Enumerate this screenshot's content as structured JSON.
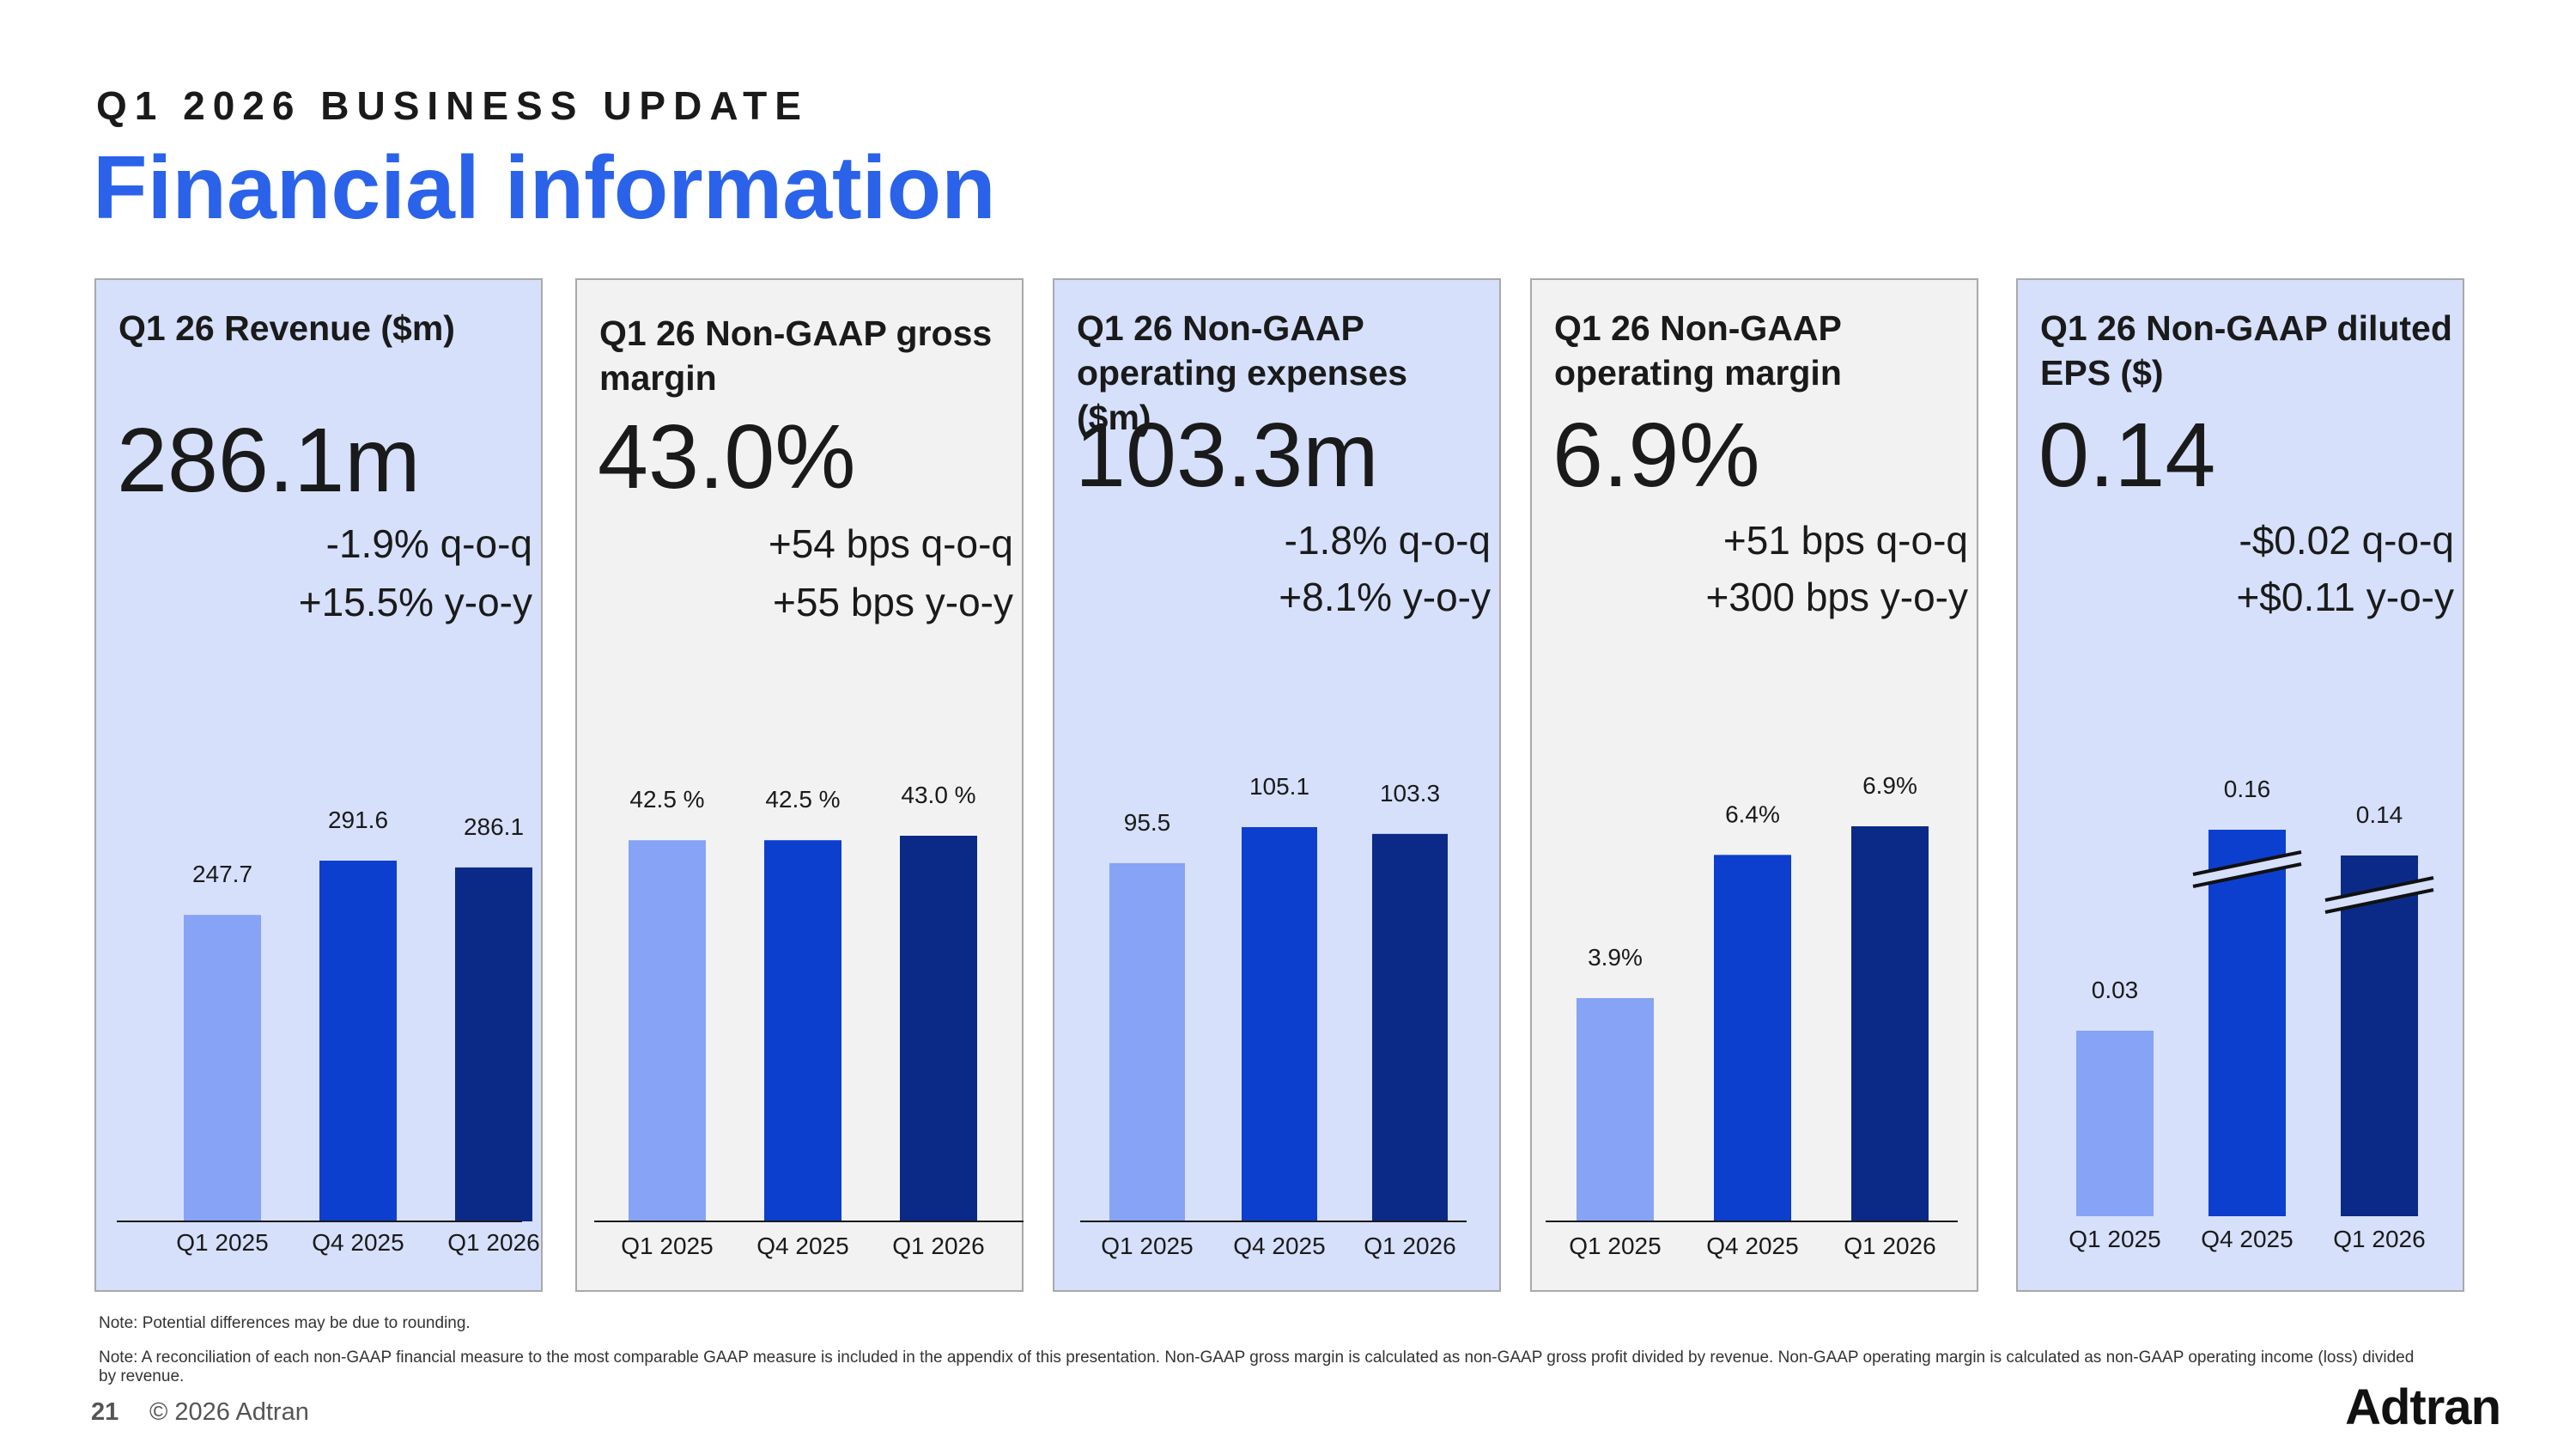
{
  "header": {
    "eyebrow": "Q1 2026 BUSINESS UPDATE",
    "title": "Financial information"
  },
  "colors": {
    "q1_2025": "#86a3f5",
    "q4_2025": "#0d3fce",
    "q1_2026": "#0b2a88",
    "accent": "#2a62ea"
  },
  "panels": [
    {
      "title": "Q1 26 Revenue ($m)",
      "value": "286.1m",
      "qoq": "-1.9% q-o-q",
      "yoy": "+15.5% y-o-y"
    },
    {
      "title": "Q1 26 Non-GAAP gross margin",
      "value": "43.0%",
      "qoq": "+54 bps q-o-q",
      "yoy": "+55 bps y-o-y"
    },
    {
      "title": "Q1 26 Non-GAAP operating expenses ($m)",
      "value": "103.3m",
      "qoq": "-1.8% q-o-q",
      "yoy": "+8.1% y-o-y"
    },
    {
      "title": "Q1 26 Non-GAAP operating margin",
      "value": "6.9%",
      "qoq": "+51 bps q-o-q",
      "yoy": "+300 bps y-o-y"
    },
    {
      "title": "Q1 26 Non-GAAP diluted EPS ($)",
      "value": "0.14",
      "qoq": "-$0.02 q-o-q",
      "yoy": "+$0.11 y-o-y"
    }
  ],
  "chart_data": [
    {
      "type": "bar",
      "categories": [
        "Q1 2025",
        "Q4 2025",
        "Q1 2026"
      ],
      "values": [
        247.7,
        291.6,
        286.1
      ],
      "labels": [
        "247.7",
        "291.6",
        "286.1"
      ]
    },
    {
      "type": "bar",
      "categories": [
        "Q1 2025",
        "Q4 2025",
        "Q1 2026"
      ],
      "values": [
        42.5,
        42.5,
        43.0
      ],
      "labels": [
        "42.5 %",
        "42.5 %",
        "43.0 %"
      ]
    },
    {
      "type": "bar",
      "categories": [
        "Q1 2025",
        "Q4 2025",
        "Q1 2026"
      ],
      "values": [
        95.5,
        105.1,
        103.3
      ],
      "labels": [
        "95.5",
        "105.1",
        "103.3"
      ]
    },
    {
      "type": "bar",
      "categories": [
        "Q1 2025",
        "Q4 2025",
        "Q1 2026"
      ],
      "values": [
        3.9,
        6.4,
        6.9
      ],
      "labels": [
        "3.9%",
        "6.4%",
        "6.9%"
      ]
    },
    {
      "type": "bar",
      "categories": [
        "Q1 2025",
        "Q4 2025",
        "Q1 2026"
      ],
      "values": [
        0.03,
        0.16,
        0.14
      ],
      "labels": [
        "0.03",
        "0.16",
        "0.14"
      ],
      "axis_break": true
    }
  ],
  "notes": {
    "rounding": "Note: Potential differences may be due to rounding.",
    "reconciliation": "Note: A reconciliation of each non-GAAP financial measure to the most comparable GAAP measure is included in the appendix of this presentation. Non-GAAP gross margin is calculated as non-GAAP gross profit divided by revenue. Non-GAAP operating margin is calculated as non-GAAP operating income (loss)  divided by revenue."
  },
  "footer": {
    "page": "21",
    "copyright": "© 2026 Adtran",
    "logo": "Adtran"
  }
}
